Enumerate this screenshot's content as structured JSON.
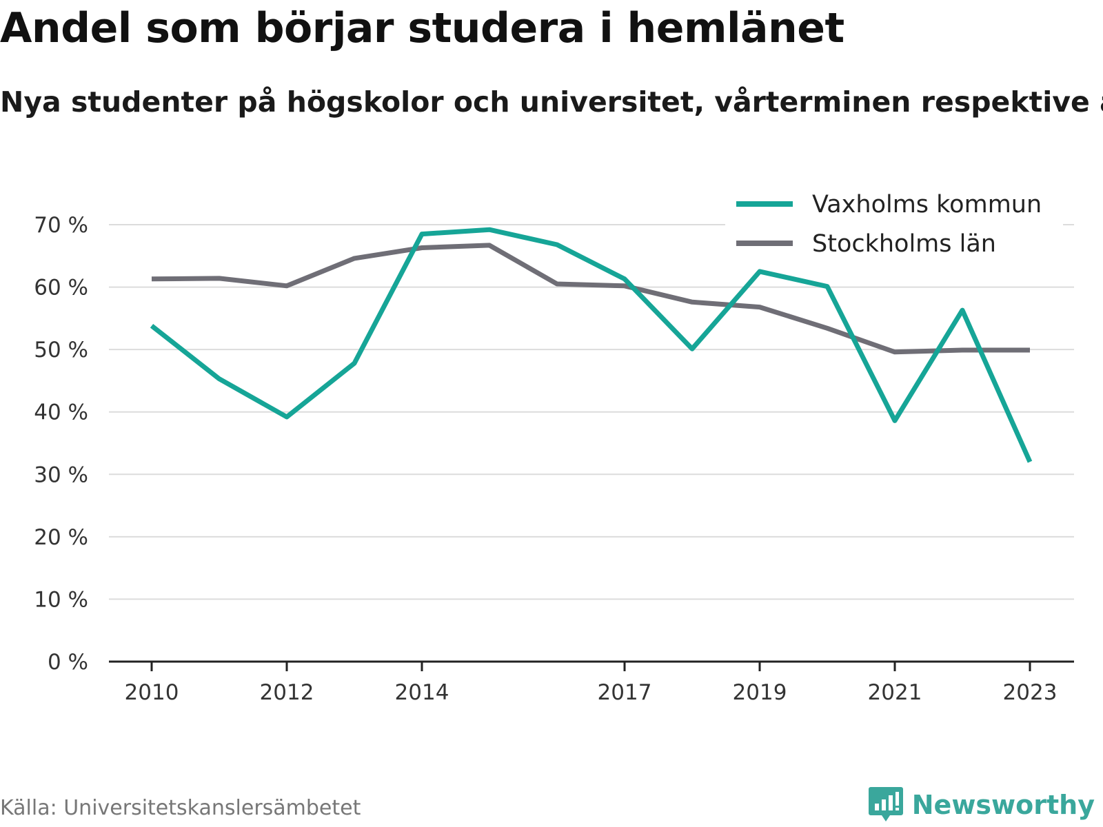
{
  "chart_data": {
    "type": "line",
    "title": "Andel som börjar studera i hemlänet",
    "subtitle": "Nya studenter på högskolor och universitet, vårterminen respektive år",
    "x": [
      2010,
      2011,
      2012,
      2013,
      2014,
      2015,
      2016,
      2017,
      2018,
      2019,
      2020,
      2021,
      2022,
      2023
    ],
    "x_ticks": [
      2010,
      2012,
      2014,
      2017,
      2019,
      2021,
      2023
    ],
    "x_tick_labels": [
      "2010",
      "2012",
      "2014",
      "2017",
      "2019",
      "2021",
      "2023"
    ],
    "ylim": [
      0,
      70
    ],
    "y_ticks": [
      0,
      10,
      20,
      30,
      40,
      50,
      60,
      70
    ],
    "y_tick_labels": [
      "0 %",
      "10 %",
      "20 %",
      "30 %",
      "40 %",
      "50 %",
      "60 %",
      "70 %"
    ],
    "grid": true,
    "legend_position": "top-right",
    "series": [
      {
        "name": "Vaxholms kommun",
        "color": "#16a597",
        "values": [
          53.8,
          45.3,
          39.2,
          47.8,
          68.5,
          69.2,
          66.8,
          61.3,
          50.1,
          62.5,
          60.1,
          38.6,
          56.3,
          32.0
        ]
      },
      {
        "name": "Stockholms län",
        "color": "#6f6e76",
        "values": [
          61.3,
          61.4,
          60.2,
          64.6,
          66.3,
          66.7,
          60.5,
          60.2,
          57.6,
          56.8,
          53.4,
          49.6,
          49.9,
          49.9
        ]
      }
    ]
  },
  "footer": {
    "source": "Källa: Universitetskanslersämbetet",
    "brand": "Newsworthy",
    "brand_icon": "newsworthy-logo-icon",
    "brand_color": "#3aa79c"
  }
}
